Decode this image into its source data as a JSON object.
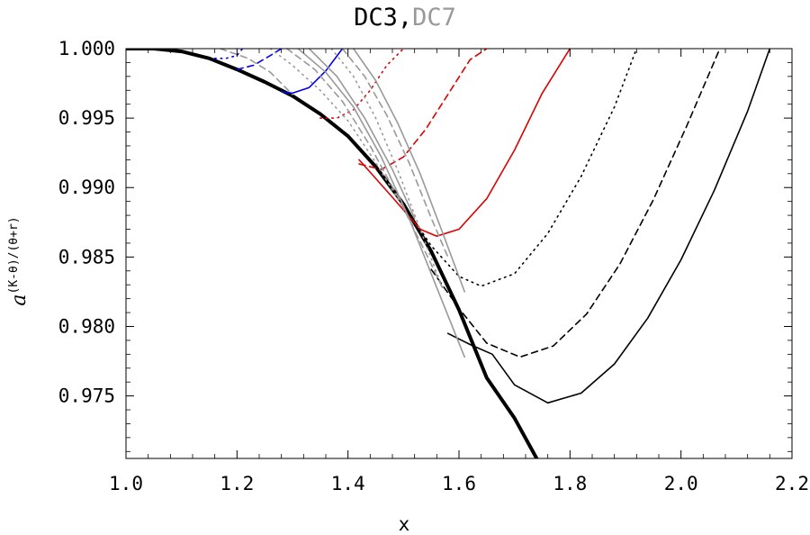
{
  "title": {
    "main": "DC3",
    "separator": ",",
    "alt": "DC7"
  },
  "chart_data": {
    "type": "line",
    "title": "DC3,DC7",
    "xlabel": "x",
    "ylabel": {
      "base": "a",
      "superscript": "(K-θ)/(θ+r)"
    },
    "xlim": [
      1.0,
      2.2
    ],
    "ylim": [
      0.9705,
      1.0
    ],
    "xticks": [
      1.0,
      1.2,
      1.4,
      1.6,
      1.8,
      2.0,
      2.2
    ],
    "xtick_labels": [
      "1.0",
      "1.2",
      "1.4",
      "1.6",
      "1.8",
      "2.0",
      "2.2"
    ],
    "yticks": [
      0.975,
      0.98,
      0.985,
      0.99,
      0.995,
      1.0
    ],
    "ytick_labels": [
      "0.975",
      "0.980",
      "0.985",
      "0.990",
      "0.995",
      "1.000"
    ],
    "grid": false,
    "series": [
      {
        "style": "thick",
        "color": "#000000",
        "x": [
          1.0,
          1.05,
          1.1,
          1.15,
          1.2,
          1.25,
          1.3,
          1.35,
          1.4,
          1.45,
          1.5,
          1.55,
          1.6,
          1.65,
          1.7,
          1.74
        ],
        "y": [
          1.0,
          1.0,
          0.9998,
          0.9993,
          0.9985,
          0.9976,
          0.9966,
          0.9953,
          0.9937,
          0.9915,
          0.9888,
          0.9854,
          0.9812,
          0.9763,
          0.9734,
          0.9705
        ]
      },
      {
        "style": "solid",
        "color": "#000000",
        "x": [
          1.58,
          1.62,
          1.66,
          1.7,
          1.76,
          1.82,
          1.88,
          1.94,
          2.0,
          2.06,
          2.12,
          2.16
        ],
        "y": [
          0.9795,
          0.9787,
          0.978,
          0.9758,
          0.9745,
          0.9752,
          0.9773,
          0.9806,
          0.9848,
          0.9898,
          0.9955,
          1.0
        ]
      },
      {
        "style": "dashed",
        "color": "#000000",
        "x": [
          1.55,
          1.6,
          1.65,
          1.71,
          1.77,
          1.83,
          1.89,
          1.95,
          2.01,
          2.07
        ],
        "y": [
          0.9841,
          0.9813,
          0.9788,
          0.9778,
          0.9786,
          0.9809,
          0.9845,
          0.9891,
          0.9944,
          1.0
        ]
      },
      {
        "style": "dotted",
        "color": "#000000",
        "x": [
          1.5,
          1.55,
          1.6,
          1.64,
          1.7,
          1.76,
          1.82,
          1.88,
          1.92
        ],
        "y": [
          0.9888,
          0.9858,
          0.9836,
          0.9829,
          0.9838,
          0.9867,
          0.9908,
          0.9958,
          1.0
        ]
      },
      {
        "style": "solid",
        "color": "#dd0000",
        "x": [
          1.42,
          1.48,
          1.53,
          1.56,
          1.6,
          1.65,
          1.7,
          1.75,
          1.8
        ],
        "y": [
          0.992,
          0.9893,
          0.987,
          0.9865,
          0.987,
          0.9892,
          0.9927,
          0.9968,
          1.0
        ]
      },
      {
        "style": "dashed",
        "color": "#dd0000",
        "x": [
          1.42,
          1.46,
          1.5,
          1.54,
          1.58,
          1.62,
          1.65
        ],
        "y": [
          0.9917,
          0.9913,
          0.9922,
          0.9942,
          0.9967,
          0.9992,
          1.0
        ]
      },
      {
        "style": "dotted",
        "color": "#dd0000",
        "x": [
          1.35,
          1.38,
          1.41,
          1.44,
          1.47,
          1.5
        ],
        "y": [
          0.995,
          0.995,
          0.9956,
          0.997,
          0.9988,
          1.0
        ]
      },
      {
        "style": "solid",
        "color": "#0000ee",
        "x": [
          1.28,
          1.3,
          1.33,
          1.36,
          1.39
        ],
        "y": [
          0.9969,
          0.9968,
          0.9972,
          0.9984,
          1.0
        ]
      },
      {
        "style": "dashed",
        "color": "#0000ee",
        "x": [
          1.2,
          1.23,
          1.26,
          1.28
        ],
        "y": [
          0.9985,
          0.9988,
          0.9995,
          1.0
        ]
      },
      {
        "style": "dotted",
        "color": "#0000ee",
        "x": [
          1.16,
          1.18,
          1.2,
          1.21
        ],
        "y": [
          0.9993,
          0.9993,
          0.9995,
          1.0
        ]
      },
      {
        "style": "dashed",
        "color": "#999999",
        "x": [
          1.17,
          1.22,
          1.26,
          1.3
        ],
        "y": [
          1.0,
          0.9993,
          0.9983,
          0.9967
        ]
      },
      {
        "style": "dotted",
        "color": "#999999",
        "x": [
          1.26,
          1.3,
          1.35,
          1.4,
          1.45,
          1.5,
          1.52
        ],
        "y": [
          1.0,
          0.9988,
          0.997,
          0.9948,
          0.9918,
          0.9885,
          0.987
        ]
      },
      {
        "style": "dashed",
        "color": "#999999",
        "x": [
          1.29,
          1.34,
          1.39,
          1.44,
          1.49,
          1.54,
          1.57
        ],
        "y": [
          1.0,
          0.9985,
          0.9962,
          0.993,
          0.9893,
          0.9853,
          0.9828
        ]
      },
      {
        "style": "solid",
        "color": "#999999",
        "x": [
          1.31,
          1.36,
          1.41,
          1.46,
          1.51,
          1.56,
          1.61
        ],
        "y": [
          1.0,
          0.9983,
          0.9958,
          0.9922,
          0.9878,
          0.9828,
          0.9778
        ]
      },
      {
        "style": "solid",
        "color": "#999999",
        "x": [
          1.33,
          1.38,
          1.43,
          1.48,
          1.52
        ],
        "y": [
          1.0,
          0.998,
          0.995,
          0.9913,
          0.9878
        ]
      },
      {
        "style": "dotted",
        "color": "#999999",
        "x": [
          1.37,
          1.41,
          1.45,
          1.49,
          1.53,
          1.57
        ],
        "y": [
          1.0,
          0.998,
          0.995,
          0.9912,
          0.987,
          0.9828
        ]
      },
      {
        "style": "dashed",
        "color": "#999999",
        "x": [
          1.39,
          1.43,
          1.47,
          1.51,
          1.55,
          1.58
        ],
        "y": [
          1.0,
          0.998,
          0.9952,
          0.9918,
          0.9878,
          0.985
        ]
      },
      {
        "style": "solid",
        "color": "#999999",
        "x": [
          1.41,
          1.45,
          1.49,
          1.53,
          1.57,
          1.61
        ],
        "y": [
          1.0,
          0.9977,
          0.9946,
          0.991,
          0.9868,
          0.9825
        ]
      }
    ]
  }
}
